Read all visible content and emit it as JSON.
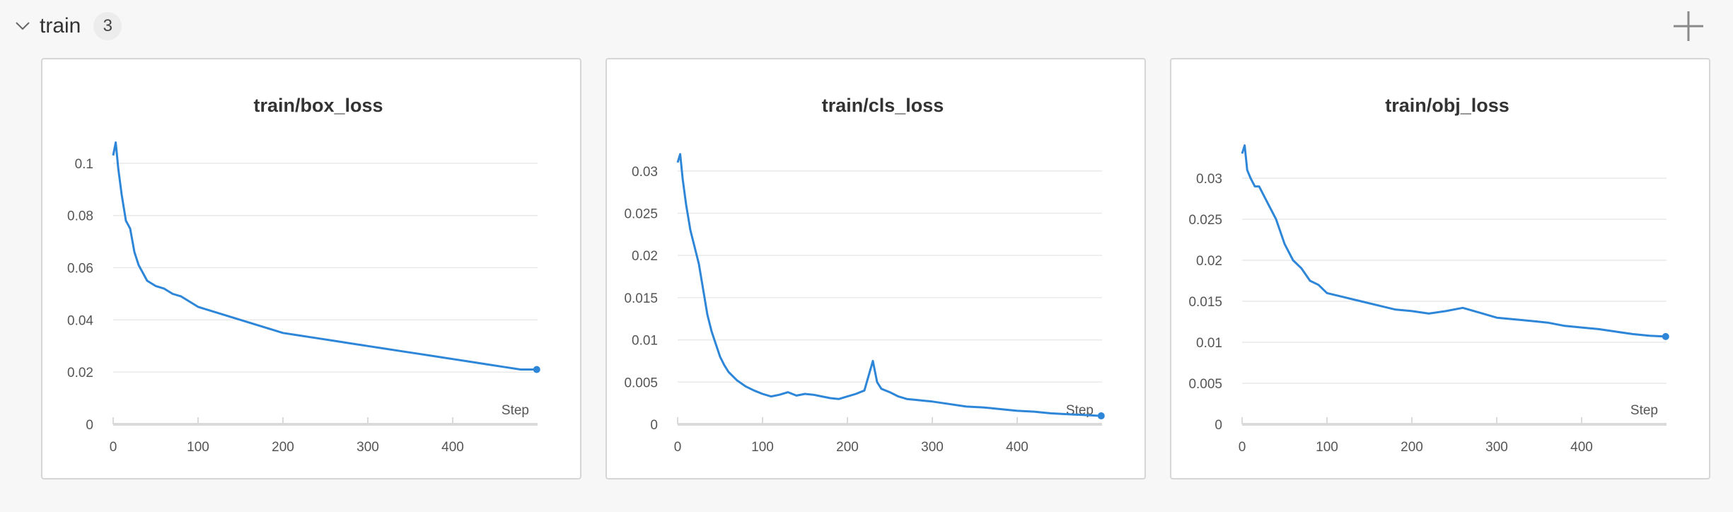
{
  "section": {
    "title": "train",
    "count": "3"
  },
  "colors": {
    "line": "#2e86d8",
    "grid": "#e9e9e9",
    "axis": "#dadada",
    "text": "#555555",
    "title": "#333333"
  },
  "icons": {
    "collapse": "chevron-down-icon",
    "add": "plus-icon"
  },
  "chart_data": [
    {
      "type": "line",
      "title": "train/box_loss",
      "xlabel": "Step",
      "xlim": [
        0,
        500
      ],
      "ylim": [
        0,
        0.11
      ],
      "x_ticks": [
        0,
        100,
        200,
        300,
        400
      ],
      "y_ticks": [
        0,
        0.02,
        0.04,
        0.06,
        0.08,
        0.1
      ],
      "x_tick_labels": [
        "0",
        "100",
        "200",
        "300",
        "400"
      ],
      "y_tick_labels": [
        "0",
        "0.02",
        "0.04",
        "0.06",
        "0.08",
        "0.1"
      ],
      "grid": true,
      "series": [
        {
          "x": [
            0,
            3,
            6,
            10,
            15,
            20,
            25,
            30,
            35,
            40,
            50,
            60,
            70,
            80,
            90,
            100,
            120,
            140,
            160,
            180,
            200,
            220,
            240,
            260,
            280,
            300,
            320,
            340,
            360,
            380,
            400,
            420,
            440,
            460,
            480,
            499
          ],
          "y": [
            0.103,
            0.108,
            0.098,
            0.088,
            0.078,
            0.075,
            0.066,
            0.061,
            0.058,
            0.055,
            0.053,
            0.052,
            0.05,
            0.049,
            0.047,
            0.045,
            0.043,
            0.041,
            0.039,
            0.037,
            0.035,
            0.034,
            0.033,
            0.032,
            0.031,
            0.03,
            0.029,
            0.028,
            0.027,
            0.026,
            0.025,
            0.024,
            0.023,
            0.022,
            0.021,
            0.021
          ]
        }
      ]
    },
    {
      "type": "line",
      "title": "train/cls_loss",
      "xlabel": "Step",
      "xlim": [
        0,
        500
      ],
      "ylim": [
        0,
        0.034
      ],
      "x_ticks": [
        0,
        100,
        200,
        300,
        400
      ],
      "y_ticks": [
        0,
        0.005,
        0.01,
        0.015,
        0.02,
        0.025,
        0.03
      ],
      "x_tick_labels": [
        "0",
        "100",
        "200",
        "300",
        "400"
      ],
      "y_tick_labels": [
        "0",
        "0.005",
        "0.01",
        "0.015",
        "0.02",
        "0.025",
        "0.03"
      ],
      "grid": true,
      "series": [
        {
          "x": [
            0,
            3,
            6,
            10,
            15,
            20,
            25,
            30,
            35,
            40,
            45,
            50,
            55,
            60,
            70,
            80,
            90,
            100,
            110,
            120,
            130,
            140,
            150,
            160,
            170,
            180,
            190,
            200,
            210,
            220,
            230,
            235,
            240,
            250,
            260,
            270,
            280,
            290,
            300,
            320,
            340,
            360,
            380,
            400,
            420,
            440,
            460,
            480,
            499
          ],
          "y": [
            0.031,
            0.032,
            0.029,
            0.026,
            0.023,
            0.021,
            0.019,
            0.016,
            0.013,
            0.011,
            0.0095,
            0.008,
            0.007,
            0.0062,
            0.0052,
            0.0045,
            0.004,
            0.0036,
            0.0033,
            0.0035,
            0.0038,
            0.0034,
            0.0036,
            0.0035,
            0.0033,
            0.0031,
            0.003,
            0.0033,
            0.0036,
            0.004,
            0.0075,
            0.005,
            0.0042,
            0.0038,
            0.0033,
            0.003,
            0.0029,
            0.0028,
            0.0027,
            0.0024,
            0.0021,
            0.002,
            0.0018,
            0.0016,
            0.0015,
            0.0013,
            0.0012,
            0.0011,
            0.001
          ]
        }
      ]
    },
    {
      "type": "line",
      "title": "train/obj_loss",
      "xlabel": "Step",
      "xlim": [
        0,
        500
      ],
      "ylim": [
        0,
        0.035
      ],
      "x_ticks": [
        0,
        100,
        200,
        300,
        400
      ],
      "y_ticks": [
        0,
        0.005,
        0.01,
        0.015,
        0.02,
        0.025,
        0.03
      ],
      "x_tick_labels": [
        "0",
        "100",
        "200",
        "300",
        "400"
      ],
      "y_tick_labels": [
        "0",
        "0.005",
        "0.01",
        "0.015",
        "0.02",
        "0.025",
        "0.03"
      ],
      "grid": true,
      "series": [
        {
          "x": [
            0,
            3,
            6,
            10,
            15,
            20,
            25,
            30,
            40,
            50,
            60,
            70,
            80,
            90,
            100,
            120,
            140,
            160,
            180,
            200,
            220,
            240,
            260,
            280,
            300,
            320,
            340,
            360,
            380,
            400,
            420,
            440,
            460,
            480,
            499
          ],
          "y": [
            0.033,
            0.034,
            0.031,
            0.03,
            0.029,
            0.029,
            0.028,
            0.027,
            0.025,
            0.022,
            0.02,
            0.019,
            0.0175,
            0.017,
            0.016,
            0.0155,
            0.015,
            0.0145,
            0.014,
            0.0138,
            0.0135,
            0.0138,
            0.0142,
            0.0136,
            0.013,
            0.0128,
            0.0126,
            0.0124,
            0.012,
            0.0118,
            0.0116,
            0.0113,
            0.011,
            0.0108,
            0.0107
          ]
        }
      ]
    }
  ]
}
